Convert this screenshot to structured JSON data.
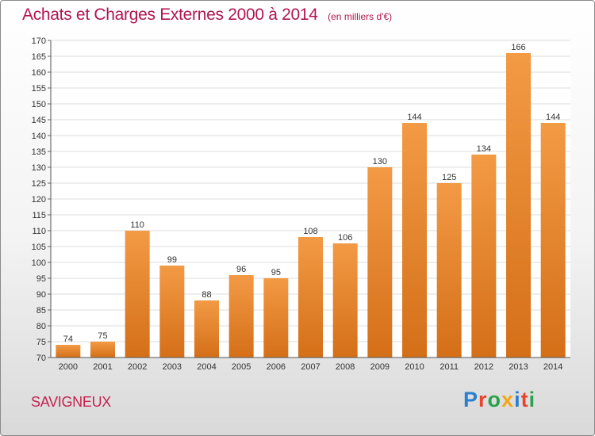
{
  "chart_data": {
    "type": "bar",
    "title": "Achats et Charges Externes 2000 à 2014",
    "subtitle": "(en milliers d'€)",
    "categories": [
      "2000",
      "2001",
      "2002",
      "2003",
      "2004",
      "2005",
      "2006",
      "2007",
      "2008",
      "2009",
      "2010",
      "2011",
      "2012",
      "2013",
      "2014"
    ],
    "values": [
      74,
      75,
      110,
      99,
      88,
      96,
      95,
      108,
      106,
      130,
      144,
      125,
      134,
      166,
      144
    ],
    "ylim": [
      70,
      170
    ],
    "yticks": [
      70,
      75,
      80,
      85,
      90,
      95,
      100,
      105,
      110,
      115,
      120,
      125,
      130,
      135,
      140,
      145,
      150,
      155,
      160,
      165,
      170
    ],
    "grid": true,
    "bar_color": "#f39a45",
    "bar_color_dark": "#d46f18"
  },
  "footer": {
    "commune": "SAVIGNEUX",
    "brand": [
      "P",
      "r",
      "o",
      "x",
      "i",
      "t",
      "i"
    ],
    "brand_colors": [
      "#2a7fd0",
      "#e8452c",
      "#2aa24a",
      "#f2a516",
      "#2a7fd0",
      "#e8452c",
      "#2aa24a"
    ]
  }
}
